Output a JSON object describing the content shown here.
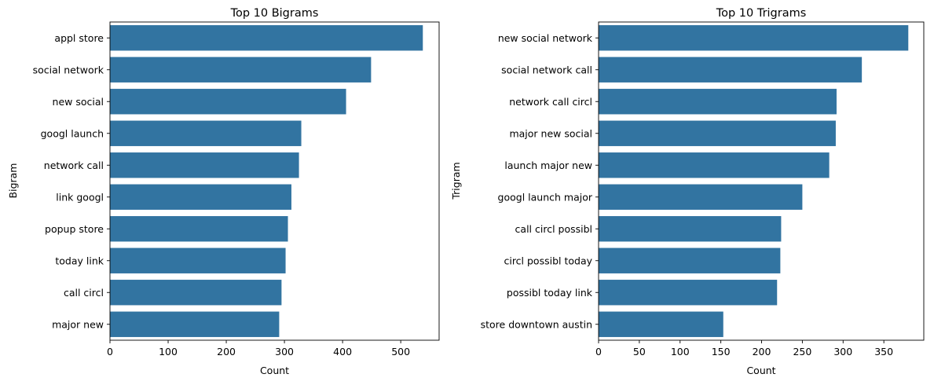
{
  "chart_data": [
    {
      "type": "bar",
      "orientation": "horizontal",
      "title": "Top 10 Bigrams",
      "xlabel": "Count",
      "ylabel": "Bigram",
      "categories": [
        "appl store",
        "social network",
        "new social",
        "googl launch",
        "network call",
        "link googl",
        "popup store",
        "today link",
        "call circl",
        "major new"
      ],
      "values": [
        538,
        449,
        406,
        329,
        325,
        312,
        306,
        302,
        295,
        291
      ],
      "xlim": [
        0,
        566
      ],
      "xticks": [
        0,
        100,
        200,
        300,
        400,
        500
      ],
      "color": "#3274a1",
      "grid": false
    },
    {
      "type": "bar",
      "orientation": "horizontal",
      "title": "Top 10 Trigrams",
      "xlabel": "Count",
      "ylabel": "Trigram",
      "categories": [
        "new social network",
        "social network call",
        "network call circl",
        "major new social",
        "launch major new",
        "googl launch major",
        "call circl possibl",
        "circl possibl today",
        "possibl today link",
        "store downtown austin"
      ],
      "values": [
        380,
        323,
        292,
        291,
        283,
        250,
        224,
        223,
        219,
        153
      ],
      "xlim": [
        0,
        399
      ],
      "xticks": [
        0,
        50,
        100,
        150,
        200,
        250,
        300,
        350
      ],
      "color": "#3274a1",
      "grid": false
    }
  ]
}
